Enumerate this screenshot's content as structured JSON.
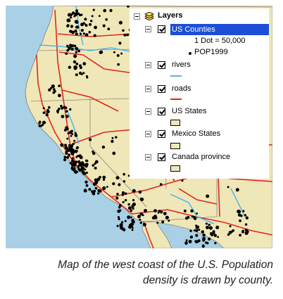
{
  "toc": {
    "root_label": "Layers",
    "layers": [
      {
        "name": "US Counties",
        "checked": true,
        "selected": true,
        "legend": [
          {
            "text": "1 Dot = 50,000"
          },
          {
            "text": "POP1999"
          }
        ]
      },
      {
        "name": "rivers",
        "checked": true,
        "symbol_color": "#4fb6e6"
      },
      {
        "name": "roads",
        "checked": true,
        "symbol_color": "#e2261e"
      },
      {
        "name": "US States",
        "checked": true,
        "symbol_color": "#f0e7b8"
      },
      {
        "name": "Mexico States",
        "checked": true,
        "symbol_color": "#f0e7b8"
      },
      {
        "name": "Canada province",
        "checked": true,
        "symbol_color": "#f0e7b8"
      }
    ]
  },
  "map": {
    "ocean_color": "#a9d0e4",
    "land_color": "#f0e7b8",
    "road_color": "#e2261e",
    "river_color": "#4fb6e6",
    "dot_color": "#000000"
  },
  "caption": {
    "line1": "Map of the west coast of the U.S. Population",
    "line2": "density is drawn by county."
  }
}
